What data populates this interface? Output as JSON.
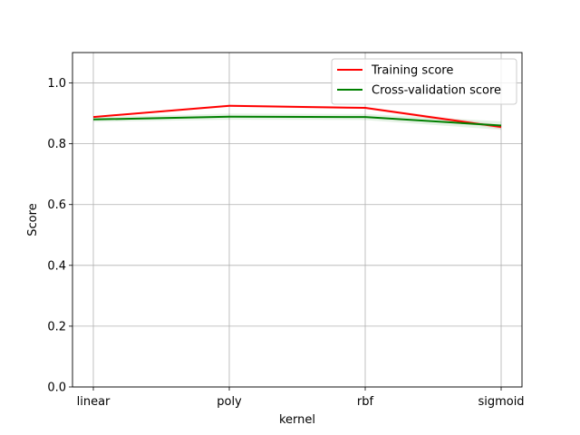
{
  "chart_data": {
    "type": "line",
    "categories": [
      "linear",
      "poly",
      "rbf",
      "sigmoid"
    ],
    "xlabel": "kernel",
    "ylabel": "Score",
    "ylim": [
      0.0,
      1.1
    ],
    "yticks": [
      0.0,
      0.2,
      0.4,
      0.6,
      0.8,
      1.0
    ],
    "ytick_labels": [
      "0.0",
      "0.2",
      "0.4",
      "0.6",
      "0.8",
      "1.0"
    ],
    "grid": true,
    "legend_position": "top-right",
    "series": [
      {
        "name": "Training score",
        "color": "#ff0000",
        "values": [
          0.888,
          0.925,
          0.918,
          0.855
        ],
        "band_lower": [
          0.886,
          0.921,
          0.914,
          0.848
        ],
        "band_upper": [
          0.89,
          0.929,
          0.922,
          0.862
        ],
        "band_color": "#ff0000"
      },
      {
        "name": "Cross-validation score",
        "color": "#008000",
        "values": [
          0.88,
          0.889,
          0.888,
          0.86
        ],
        "band_lower": [
          0.872,
          0.879,
          0.878,
          0.846
        ],
        "band_upper": [
          0.888,
          0.899,
          0.898,
          0.874
        ],
        "band_color": "#008000"
      }
    ]
  }
}
